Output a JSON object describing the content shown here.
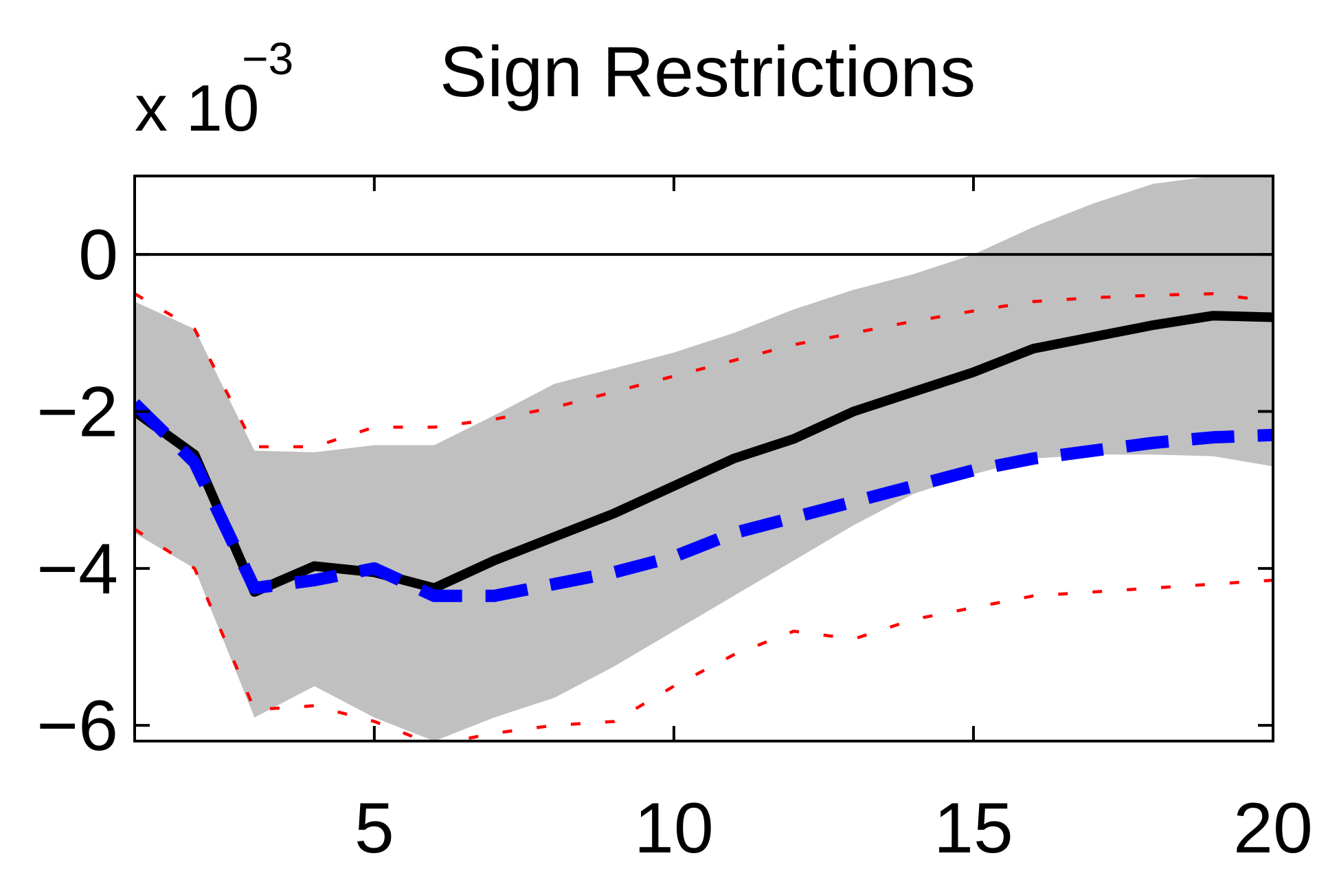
{
  "chart_data": {
    "type": "line",
    "title": "Sign Restrictions",
    "xlabel": "",
    "ylabel": "",
    "y_multiplier": {
      "base": "x 10",
      "exponent": "−3"
    },
    "xlim": [
      1,
      20
    ],
    "ylim": [
      -6.2,
      1.0
    ],
    "x_ticks": [
      5,
      10,
      15,
      20
    ],
    "x_tick_labels": [
      "5",
      "10",
      "15",
      "20"
    ],
    "y_ticks": [
      -6,
      -4,
      -2,
      0
    ],
    "y_tick_labels": [
      "−6",
      "−4",
      "−2",
      "0"
    ],
    "grid": false,
    "reference_line": 0,
    "x": [
      1,
      2,
      3,
      4,
      5,
      6,
      7,
      8,
      9,
      10,
      11,
      12,
      13,
      14,
      15,
      16,
      17,
      18,
      19,
      20
    ],
    "band": {
      "lower": [
        -3.55,
        -4.0,
        -5.9,
        -5.5,
        -5.9,
        -6.2,
        -5.9,
        -5.65,
        -5.25,
        -4.8,
        -4.35,
        -3.9,
        -3.45,
        -3.05,
        -2.8,
        -2.6,
        -2.55,
        -2.55,
        -2.57,
        -2.7
      ],
      "upper": [
        -0.6,
        -0.95,
        -2.5,
        -2.52,
        -2.43,
        -2.43,
        -2.05,
        -1.65,
        -1.45,
        -1.25,
        -1.0,
        -0.7,
        -0.45,
        -0.25,
        0.0,
        0.35,
        0.65,
        0.9,
        1.0,
        1.0
      ],
      "color": "#c0c0c0"
    },
    "series": [
      {
        "values": [
          -2.0,
          -2.55,
          -4.3,
          -3.97,
          -4.05,
          -4.25,
          -3.9,
          -3.6,
          -3.3,
          -2.95,
          -2.6,
          -2.35,
          -2.0,
          -1.75,
          -1.5,
          -1.2,
          -1.05,
          -0.9,
          -0.78,
          -0.8
        ],
        "color": "#000000",
        "style": "solid"
      },
      {
        "values": [
          -1.9,
          -2.65,
          -4.25,
          -4.15,
          -4.0,
          -4.35,
          -4.35,
          -4.2,
          -4.05,
          -3.85,
          -3.55,
          -3.35,
          -3.15,
          -2.95,
          -2.75,
          -2.6,
          -2.5,
          -2.4,
          -2.33,
          -2.3
        ],
        "color": "#0000ff",
        "style": "dashed"
      },
      {
        "values": [
          -0.5,
          -0.95,
          -2.45,
          -2.45,
          -2.2,
          -2.2,
          -2.1,
          -1.95,
          -1.75,
          -1.55,
          -1.35,
          -1.15,
          -1.0,
          -0.85,
          -0.72,
          -0.6,
          -0.55,
          -0.52,
          -0.5,
          -0.6
        ],
        "color": "#ff0000",
        "style": "dotted"
      },
      {
        "values": [
          -3.5,
          -4.0,
          -5.8,
          -5.75,
          -5.95,
          -6.25,
          -6.1,
          -6.0,
          -5.95,
          -5.5,
          -5.1,
          -4.8,
          -4.9,
          -4.65,
          -4.5,
          -4.35,
          -4.3,
          -4.25,
          -4.2,
          -4.15
        ],
        "color": "#ff0000",
        "style": "dotted"
      }
    ]
  }
}
